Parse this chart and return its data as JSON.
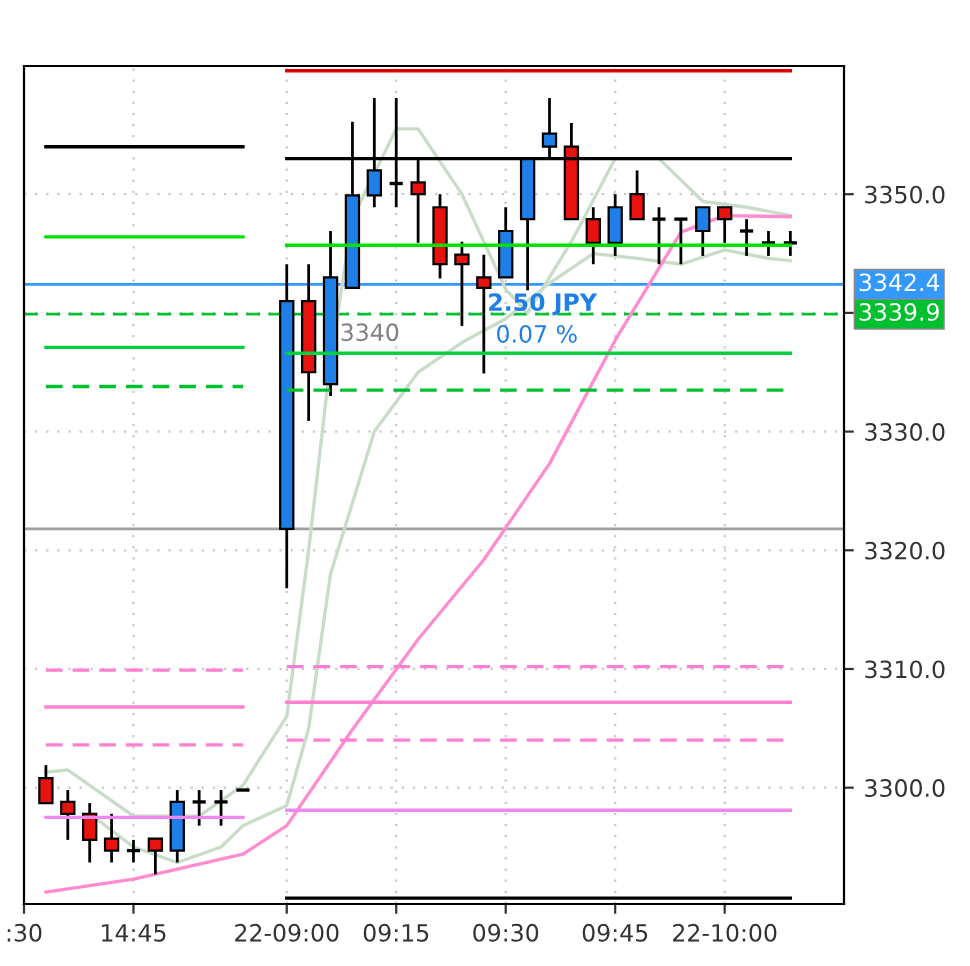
{
  "chart_data": {
    "type": "candlestick",
    "categories": [
      ":30",
      null,
      null,
      null,
      null,
      "14:45",
      null,
      null,
      null,
      null,
      null,
      null,
      "22-09:00",
      null,
      null,
      null,
      null,
      "09:15",
      null,
      null,
      null,
      null,
      "09:30",
      null,
      null,
      null,
      null,
      "09:45",
      null,
      null,
      null,
      null,
      "22-10:00",
      null,
      null,
      null
    ],
    "ohlc": [
      null,
      [
        3300.8,
        3301.9,
        3298.7,
        3298.7
      ],
      [
        3298.8,
        3299.8,
        3295.6,
        3297.8
      ],
      [
        3297.8,
        3298.7,
        3293.7,
        3295.6
      ],
      [
        3295.7,
        3297.8,
        3293.7,
        3294.7
      ],
      [
        3294.7,
        3295.6,
        3293.7,
        3294.7
      ],
      [
        3295.7,
        3295.7,
        3292.7,
        3294.7
      ],
      [
        3294.7,
        3299.8,
        3293.7,
        3298.8
      ],
      [
        3298.8,
        3299.8,
        3296.8,
        3298.8
      ],
      [
        3298.8,
        3299.8,
        3296.8,
        3298.8
      ],
      [
        3299.8,
        3299.8,
        3299.8,
        3299.8
      ],
      null,
      [
        3321.8,
        3344.1,
        3316.8,
        3341.0
      ],
      [
        3341.0,
        3344.1,
        3330.9,
        3335.0
      ],
      [
        3334.0,
        3346.9,
        3333.0,
        3343.0
      ],
      [
        3342.1,
        3356.1,
        3342.1,
        3349.9
      ],
      [
        3349.9,
        3358.1,
        3348.9,
        3352.0
      ],
      [
        3350.9,
        3358.1,
        3348.9,
        3350.9
      ],
      [
        3351.0,
        3353.0,
        3345.9,
        3350.0
      ],
      [
        3348.9,
        3350.0,
        3342.9,
        3344.1
      ],
      [
        3344.9,
        3346.0,
        3338.9,
        3344.1
      ],
      [
        3343.0,
        3344.9,
        3334.9,
        3342.1
      ],
      [
        3343.0,
        3348.9,
        3343.0,
        3346.9
      ],
      [
        3347.9,
        3353.0,
        3341.9,
        3353.0
      ],
      [
        3354.0,
        3358.1,
        3353.0,
        3355.1
      ],
      [
        3354.0,
        3356.0,
        3347.9,
        3347.9
      ],
      [
        3347.9,
        3348.9,
        3344.1,
        3345.9
      ],
      [
        3345.9,
        3350.0,
        3344.8,
        3348.9
      ],
      [
        3350.0,
        3352.0,
        3347.9,
        3347.9
      ],
      [
        3347.9,
        3348.9,
        3344.1,
        3347.9
      ],
      [
        3347.9,
        3347.9,
        3344.1,
        3347.9
      ],
      [
        3346.9,
        3348.9,
        3344.8,
        3348.9
      ],
      [
        3348.9,
        3348.9,
        3345.9,
        3347.9
      ],
      [
        3346.9,
        3347.9,
        3344.8,
        3346.9
      ],
      [
        3345.9,
        3346.9,
        3344.8,
        3345.9
      ],
      [
        3345.9,
        3346.9,
        3344.8,
        3345.9
      ]
    ],
    "colors": [
      null,
      "#e8130f",
      "#e8130f",
      "#e8130f",
      "#e8130f",
      "#000000",
      "#e8130f",
      "#1f7fe8",
      "#000000",
      "#000000",
      "#000000",
      null,
      "#1f7fe8",
      "#e8130f",
      "#1f7fe8",
      "#1f7fe8",
      "#1f7fe8",
      "#000000",
      "#e8130f",
      "#e8130f",
      "#e8130f",
      "#e8130f",
      "#1f7fe8",
      "#1f7fe8",
      "#1f7fe8",
      "#e8130f",
      "#e8130f",
      "#1f7fe8",
      "#e8130f",
      "#000000",
      "#000000",
      "#1f7fe8",
      "#e8130f",
      "#000000",
      "#000000",
      "#000000"
    ],
    "series": [
      {
        "type": "line",
        "color": "#c8dcc8",
        "values": [
          null,
          3301.3,
          3301.5,
          null,
          null,
          3297.6,
          null,
          null,
          3297.6,
          null,
          3300.2,
          null,
          3306.0,
          3320.0,
          3336.0,
          3348.0,
          null,
          3355.5,
          3355.5,
          null,
          3350.0,
          null,
          3342.0,
          3340.0,
          null,
          3346.0,
          null,
          3353.0,
          null,
          3353.0,
          null,
          3349.4,
          null,
          3348.9,
          null,
          3348.2
        ]
      },
      {
        "type": "line",
        "color": "#c8dcc8",
        "values": [
          null,
          null,
          null,
          3297.8,
          null,
          3295.0,
          null,
          3293.7,
          null,
          3295.0,
          3296.8,
          null,
          3298.5,
          3305.0,
          3318.0,
          null,
          3330.0,
          null,
          3335.0,
          null,
          3337.5,
          null,
          3339.5,
          null,
          3342.5,
          null,
          3345.0,
          null,
          3344.6,
          null,
          3344.1,
          null,
          3345.3,
          null,
          3344.6,
          3344.4
        ]
      },
      {
        "type": "line",
        "color": "#ff8ccf",
        "values": [
          null,
          3291.2,
          null,
          null,
          null,
          3292.3,
          null,
          null,
          null,
          null,
          3294.4,
          null,
          3296.8,
          null,
          null,
          3304.9,
          null,
          null,
          3312.5,
          null,
          null,
          3319.2,
          null,
          null,
          3327.3,
          null,
          null,
          3337.7,
          null,
          null,
          3346.8,
          null,
          3348.2,
          null,
          null,
          3348.1
        ]
      },
      {
        "type": "step",
        "color": "#000000",
        "values": [
          null,
          3354.0,
          3354.0,
          3354.0,
          3354.0,
          3354.0,
          3354.0,
          3354.0,
          3354.0,
          3354.0,
          3354.0,
          null,
          3353.0,
          3353.0,
          3353.0,
          3353.0,
          3353.0,
          3353.0,
          3353.0,
          3353.0,
          3353.0,
          3353.0,
          3353.0,
          3353.0,
          3353.0,
          3353.0,
          3353.0,
          3353.0,
          3353.0,
          3353.0,
          3353.0,
          3353.0,
          3353.0,
          3353.0,
          3353.0,
          3353.0
        ]
      },
      {
        "type": "step",
        "color": "#00e000",
        "values": [
          null,
          3346.4,
          3346.4,
          3346.4,
          3346.4,
          3346.4,
          3346.4,
          3346.4,
          3346.4,
          3346.4,
          3346.4,
          null,
          3345.7,
          3345.7,
          3345.7,
          3345.7,
          3345.7,
          3345.7,
          3345.7,
          3345.7,
          3345.7,
          3345.7,
          3345.7,
          3345.7,
          3345.7,
          3345.7,
          3345.7,
          3345.7,
          3345.7,
          3345.7,
          3345.7,
          3345.7,
          3345.7,
          3345.7,
          3345.7,
          3345.7
        ]
      },
      {
        "type": "step",
        "color": "#00d040",
        "values": [
          null,
          3337.1,
          3337.1,
          3337.1,
          3337.1,
          3337.1,
          3337.1,
          3337.1,
          3337.1,
          3337.1,
          3337.1,
          null,
          3336.6,
          3336.6,
          3336.6,
          3336.6,
          3336.6,
          3336.6,
          3336.6,
          3336.6,
          3336.6,
          3336.6,
          3336.6,
          3336.6,
          3336.6,
          3336.6,
          3336.6,
          3336.6,
          3336.6,
          3336.6,
          3336.6,
          3336.6,
          3336.6,
          3336.6,
          3336.6,
          3336.6
        ]
      },
      {
        "type": "step",
        "color": "#00c030",
        "line_style": "dashed",
        "values": [
          null,
          3333.8,
          3333.8,
          3333.8,
          3333.8,
          3333.8,
          3333.8,
          3333.8,
          3333.8,
          3333.8,
          3333.8,
          null,
          3333.5,
          3333.5,
          3333.5,
          3333.5,
          3333.5,
          3333.5,
          3333.5,
          3333.5,
          3333.5,
          3333.5,
          3333.5,
          3333.5,
          3333.5,
          3333.5,
          3333.5,
          3333.5,
          3333.5,
          3333.5,
          3333.5,
          3333.5,
          3333.5,
          3333.5,
          3333.5,
          3333.5
        ]
      },
      {
        "type": "step",
        "color": "#ff80d0",
        "line_style": "dashed",
        "values": [
          null,
          3309.9,
          3309.9,
          3309.9,
          3309.9,
          3309.9,
          3309.9,
          3309.9,
          3309.9,
          3309.9,
          3309.9,
          null,
          3310.2,
          3310.2,
          3310.2,
          3310.2,
          3310.2,
          3310.2,
          3310.2,
          3310.2,
          3310.2,
          3310.2,
          3310.2,
          3310.2,
          3310.2,
          3310.2,
          3310.2,
          3310.2,
          3310.2,
          3310.2,
          3310.2,
          3310.2,
          3310.2,
          3310.2,
          3310.2,
          3310.2
        ]
      },
      {
        "type": "step",
        "color": "#ff80d0",
        "values": [
          null,
          3306.8,
          3306.8,
          3306.8,
          3306.8,
          3306.8,
          3306.8,
          3306.8,
          3306.8,
          3306.8,
          3306.8,
          null,
          3307.2,
          3307.2,
          3307.2,
          3307.2,
          3307.2,
          3307.2,
          3307.2,
          3307.2,
          3307.2,
          3307.2,
          3307.2,
          3307.2,
          3307.2,
          3307.2,
          3307.2,
          3307.2,
          3307.2,
          3307.2,
          3307.2,
          3307.2,
          3307.2,
          3307.2,
          3307.2,
          3307.2
        ]
      },
      {
        "type": "step",
        "color": "#ff80d0",
        "line_style": "dashed",
        "values": [
          null,
          3303.6,
          3303.6,
          3303.6,
          3303.6,
          3303.6,
          3303.6,
          3303.6,
          3303.6,
          3303.6,
          3303.6,
          null,
          3304.0,
          3304.0,
          3304.0,
          3304.0,
          3304.0,
          3304.0,
          3304.0,
          3304.0,
          3304.0,
          3304.0,
          3304.0,
          3304.0,
          3304.0,
          3304.0,
          3304.0,
          3304.0,
          3304.0,
          3304.0,
          3304.0,
          3304.0,
          3304.0,
          3304.0,
          3304.0,
          3304.0
        ]
      },
      {
        "type": "step",
        "color": "#ee88ee",
        "values": [
          null,
          3297.5,
          3297.5,
          3297.5,
          3297.5,
          3297.5,
          3297.5,
          3297.5,
          3297.5,
          3297.5,
          3297.5,
          null,
          3298.1,
          3298.1,
          3298.1,
          3298.1,
          3298.1,
          3298.1,
          3298.1,
          3298.1,
          3298.1,
          3298.1,
          3298.1,
          3298.1,
          3298.1,
          3298.1,
          3298.1,
          3298.1,
          3298.1,
          3298.1,
          3298.1,
          3298.1,
          3298.1,
          3298.1,
          3298.1,
          3298.1
        ]
      },
      {
        "type": "step",
        "color": "#e00000",
        "values": [
          null,
          null,
          null,
          null,
          null,
          null,
          null,
          null,
          null,
          null,
          null,
          null,
          3360.4,
          3360.4,
          3360.4,
          3360.4,
          3360.4,
          3360.4,
          3360.4,
          3360.4,
          3360.4,
          3360.4,
          3360.4,
          3360.4,
          3360.4,
          3360.4,
          3360.4,
          3360.4,
          3360.4,
          3360.4,
          3360.4,
          3360.4,
          3360.4,
          3360.4,
          3360.4,
          3360.4
        ]
      },
      {
        "type": "step",
        "color": "#000000",
        "values": [
          null,
          null,
          null,
          null,
          null,
          null,
          null,
          null,
          null,
          null,
          null,
          null,
          3290.7,
          3290.7,
          3290.7,
          3290.7,
          3290.7,
          3290.7,
          3290.7,
          3290.7,
          3290.7,
          3290.7,
          3290.7,
          3290.7,
          3290.7,
          3290.7,
          3290.7,
          3290.7,
          3290.7,
          3290.7,
          3290.7,
          3290.7,
          3290.7,
          3290.7,
          3290.7,
          3290.7
        ]
      }
    ],
    "ref_lines": [
      {
        "axis": "y",
        "value": 3321.8,
        "color": "#a0a0a0",
        "line_style": "solid"
      },
      {
        "axis": "y",
        "value": 3339.9,
        "label": "3339.9",
        "color": "#00c030",
        "line_style": "dashed"
      },
      {
        "axis": "y",
        "value": 3342.4,
        "label": "3342.4",
        "color": "#3399ff",
        "line_style": "solid"
      }
    ],
    "annotations": [
      "2.50 JPY",
      "0.07 %",
      "3340"
    ],
    "ylim": [
      3290.2,
      3360.8
    ],
    "yticks": [
      {
        "value": 3300,
        "label": "3300.0"
      },
      {
        "value": 3310,
        "label": "3310.0"
      },
      {
        "value": 3320,
        "label": "3320.0"
      },
      {
        "value": 3330,
        "label": "3330.0"
      },
      {
        "value": 3340,
        "label": null
      },
      {
        "value": 3350,
        "label": "3350.0"
      }
    ],
    "grid": true,
    "legend": false
  }
}
